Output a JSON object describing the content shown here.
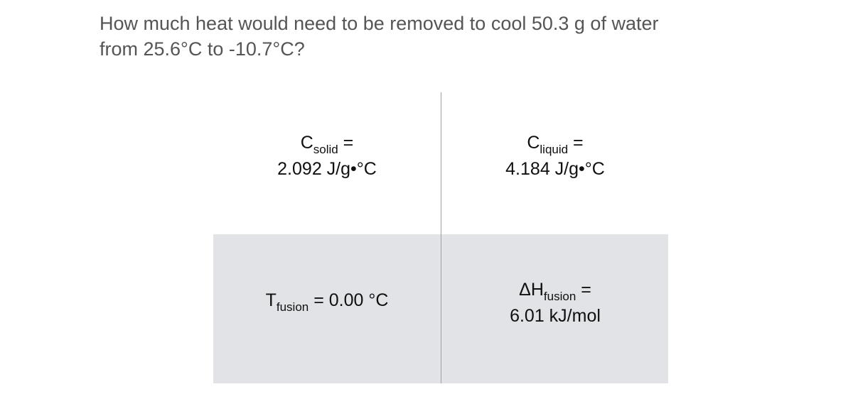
{
  "question": {
    "line1": "How much heat would need to be removed to cool 50.3 g of water",
    "line2": "from 25.6°C to -10.7°C?"
  },
  "constants": {
    "c_solid": {
      "label_prefix": "C",
      "label_sub": "solid",
      "label_eq": " =",
      "value": "2.092 J/g•°C"
    },
    "c_liquid": {
      "label_prefix": "C",
      "label_sub": "liquid",
      "label_eq": " =",
      "value": "4.184 J/g•°C"
    },
    "t_fusion": {
      "label_prefix": "T",
      "label_sub": "fusion",
      "label_eq": " = ",
      "value": "0.00 °C"
    },
    "dh_fusion": {
      "label_prefix": "ΔH",
      "label_sub": "fusion",
      "label_eq": " =",
      "value": "6.01 kJ/mol"
    }
  },
  "colors": {
    "background": "#ffffff",
    "panel": "#e1e3e6",
    "divider": "#9f9f9f",
    "question_text": "#555555",
    "value_text": "#101010"
  }
}
